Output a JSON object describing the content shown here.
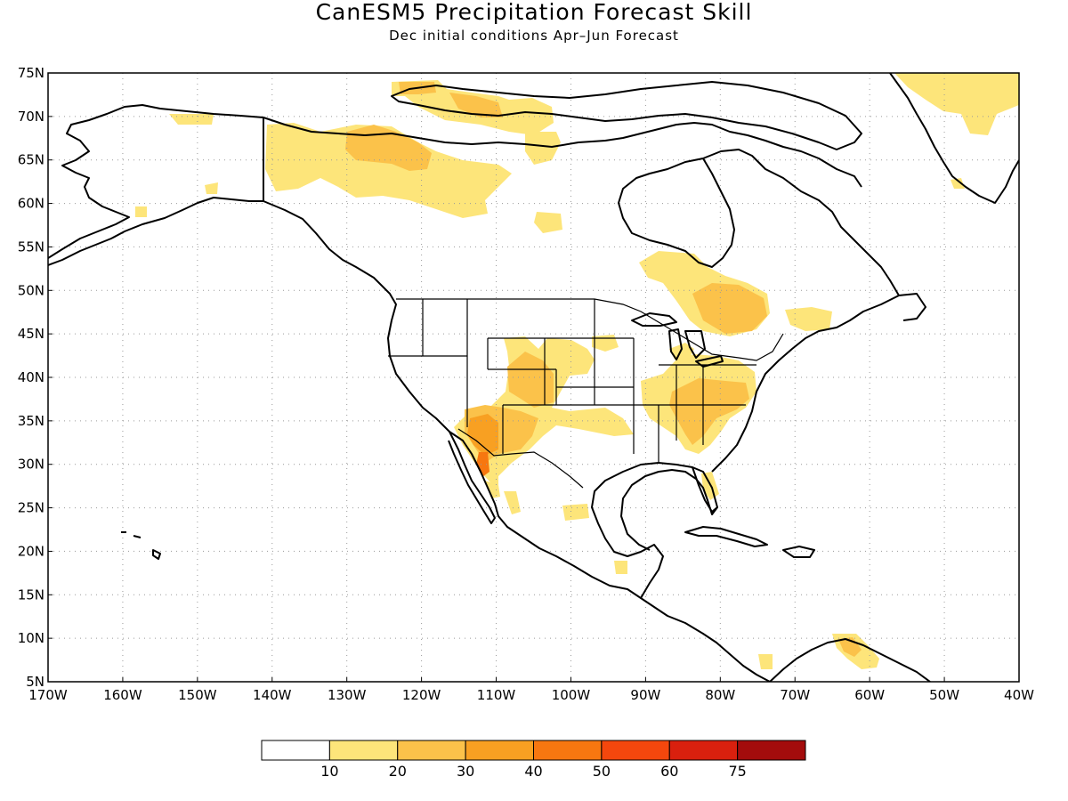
{
  "title": "CanESM5 Precipitation Forecast Skill",
  "subtitle": "Dec initial conditions  Apr–Jun Forecast",
  "map": {
    "lon_range": [
      -170,
      -40
    ],
    "lat_range": [
      5,
      75
    ],
    "grid": true,
    "lat_labels": [
      "5N",
      "10N",
      "15N",
      "20N",
      "25N",
      "30N",
      "35N",
      "40N",
      "45N",
      "50N",
      "55N",
      "60N",
      "65N",
      "70N",
      "75N"
    ],
    "lon_labels": [
      "170W",
      "160W",
      "150W",
      "140W",
      "130W",
      "120W",
      "110W",
      "100W",
      "90W",
      "80W",
      "70W",
      "60W",
      "50W",
      "40W"
    ]
  },
  "colorbar": {
    "bins": [
      "<10",
      "10-20",
      "20-30",
      "30-40",
      "40-50",
      "50-60",
      "60-75",
      ">75"
    ],
    "colors": [
      "#ffffff",
      "#fde57a",
      "#fbc24a",
      "#f8a022",
      "#f77710",
      "#f4470d",
      "#d9200e",
      "#a30c0c"
    ],
    "labels": [
      "10",
      "20",
      "30",
      "40",
      "50",
      "60",
      "75"
    ]
  },
  "colors": {
    "coast": "#000000",
    "grid": "#9a9a9a"
  }
}
